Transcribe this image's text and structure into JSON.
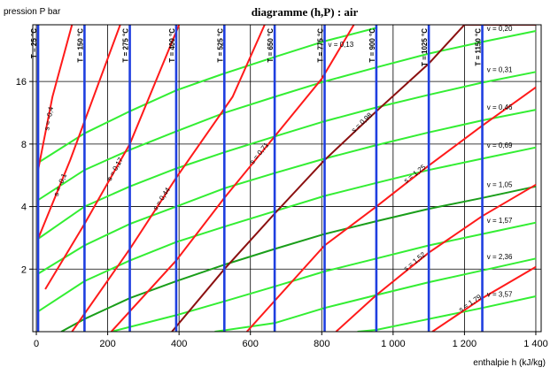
{
  "chart_data": {
    "type": "line",
    "title": "diagramme (h,P) : air",
    "ylabel": "pression  P bar",
    "xlabel": "enthalpie  h   (kJ/kg)",
    "xlim": [
      -10,
      1415
    ],
    "ylim": [
      1,
      30
    ],
    "y_scale": "log2",
    "grid": true,
    "x_ticks": [
      {
        "value": 0,
        "label": "0"
      },
      {
        "value": 200,
        "label": "200"
      },
      {
        "value": 400,
        "label": "400"
      },
      {
        "value": 600,
        "label": "600"
      },
      {
        "value": 800,
        "label": "800"
      },
      {
        "value": 1000,
        "label": "1 000"
      },
      {
        "value": 1200,
        "label": "1 200"
      },
      {
        "value": 1400,
        "label": "1 400"
      }
    ],
    "y_ticks": [
      {
        "value": 2,
        "label": "2"
      },
      {
        "value": 4,
        "label": "4"
      },
      {
        "value": 8,
        "label": "8"
      },
      {
        "value": 16,
        "label": "16"
      }
    ],
    "colors": {
      "isotherm": "#1f3fe0",
      "isentrope": "#ff1a1a",
      "isentrope_dark": "#8b1010",
      "isochore": "#33ee33",
      "isochore_dark": "#1a9e1a",
      "grid": "#000000"
    },
    "isotherms": [
      {
        "label": "T = 25 °C",
        "h": 5
      },
      {
        "label": "T = 150 °C",
        "h": 135
      },
      {
        "label": "T = 275 °C",
        "h": 262
      },
      {
        "label": "T = 400 °C",
        "h": 392
      },
      {
        "label": "T = 525 °C",
        "h": 527
      },
      {
        "label": "T = 650 °C",
        "h": 668
      },
      {
        "label": "T = 775 °C",
        "h": 808
      },
      {
        "label": "T = 900 °C",
        "h": 953
      },
      {
        "label": "T = 1025 °C",
        "h": 1100
      },
      {
        "label": "T = 1150 °C",
        "h": 1250
      }
    ],
    "isentropes": [
      {
        "label": "s = -0,4",
        "points": [
          [
            5,
            6.0
          ],
          [
            45,
            13.5
          ],
          [
            100,
            30
          ]
        ]
      },
      {
        "label": "s = -0,1",
        "points": [
          [
            5,
            2.8
          ],
          [
            95,
            6.7
          ],
          [
            235,
            30
          ]
        ]
      },
      {
        "label": "s = 0,17",
        "points": [
          [
            25,
            1.6
          ],
          [
            135,
            3.3
          ],
          [
            262,
            8
          ],
          [
            400,
            30
          ]
        ]
      },
      {
        "label": "s = 0,44",
        "points": [
          [
            100,
            1.0
          ],
          [
            262,
            2.5
          ],
          [
            392,
            5.5
          ],
          [
            550,
            13.5
          ],
          [
            640,
            30
          ]
        ]
      },
      {
        "label": "s = 0,71",
        "points": [
          [
            210,
            1.0
          ],
          [
            392,
            2.2
          ],
          [
            527,
            4.4
          ],
          [
            668,
            8.7
          ],
          [
            800,
            16.5
          ],
          [
            890,
            30
          ]
        ]
      },
      {
        "label": "s = 0,98",
        "points": [
          [
            380,
            1.0
          ],
          [
            527,
            2.0
          ],
          [
            668,
            3.7
          ],
          [
            808,
            6.7
          ],
          [
            953,
            11.5
          ],
          [
            1100,
            19.5
          ],
          [
            1200,
            30
          ],
          [
            1400,
            30
          ]
        ],
        "dark": true
      },
      {
        "label": "s = 1,25",
        "points": [
          [
            590,
            1.0
          ],
          [
            808,
            2.6
          ],
          [
            953,
            4.0
          ],
          [
            1100,
            6.3
          ],
          [
            1250,
            9.8
          ],
          [
            1400,
            15
          ]
        ]
      },
      {
        "label": "s = 1,52",
        "points": [
          [
            840,
            1.0
          ],
          [
            953,
            1.5
          ],
          [
            1100,
            2.4
          ],
          [
            1250,
            3.6
          ],
          [
            1400,
            5.1
          ]
        ]
      },
      {
        "label": "s = 1,79",
        "points": [
          [
            1110,
            1.0
          ],
          [
            1250,
            1.45
          ],
          [
            1400,
            2.05
          ]
        ]
      }
    ],
    "isochores": [
      {
        "label": "v = 0,13",
        "points": [
          [
            5,
            6.5
          ],
          [
            135,
            9.0
          ],
          [
            262,
            11.5
          ],
          [
            392,
            14.5
          ],
          [
            527,
            17.5
          ],
          [
            668,
            21.0
          ],
          [
            808,
            25.0
          ],
          [
            953,
            29.0
          ]
        ]
      },
      {
        "label": "v = 0,20",
        "points": [
          [
            5,
            4.3
          ],
          [
            135,
            6.0
          ],
          [
            262,
            7.5
          ],
          [
            392,
            9.2
          ],
          [
            527,
            11.3
          ],
          [
            668,
            13.5
          ],
          [
            808,
            16.0
          ],
          [
            953,
            18.7
          ],
          [
            1100,
            21.8
          ],
          [
            1250,
            24.8
          ],
          [
            1400,
            28.0
          ]
        ]
      },
      {
        "label": "v = 0,31",
        "points": [
          [
            5,
            2.8
          ],
          [
            135,
            4.0
          ],
          [
            262,
            5.0
          ],
          [
            392,
            6.1
          ],
          [
            527,
            7.3
          ],
          [
            668,
            8.7
          ],
          [
            808,
            10.3
          ],
          [
            953,
            12.0
          ],
          [
            1100,
            13.8
          ],
          [
            1250,
            15.8
          ],
          [
            1400,
            17.8
          ]
        ]
      },
      {
        "label": "v = 0,46",
        "points": [
          [
            5,
            1.9
          ],
          [
            135,
            2.6
          ],
          [
            262,
            3.3
          ],
          [
            392,
            4.0
          ],
          [
            527,
            4.9
          ],
          [
            668,
            5.8
          ],
          [
            808,
            6.8
          ],
          [
            953,
            7.9
          ],
          [
            1100,
            9.1
          ],
          [
            1250,
            10.4
          ],
          [
            1400,
            11.7
          ]
        ]
      },
      {
        "label": "v = 0,69",
        "points": [
          [
            5,
            1.25
          ],
          [
            135,
            1.75
          ],
          [
            262,
            2.2
          ],
          [
            392,
            2.7
          ],
          [
            527,
            3.2
          ],
          [
            668,
            3.8
          ],
          [
            808,
            4.5
          ],
          [
            953,
            5.2
          ],
          [
            1100,
            6.0
          ],
          [
            1250,
            6.8
          ],
          [
            1400,
            7.7
          ]
        ]
      },
      {
        "label": "v = 1,05",
        "points": [
          [
            70,
            1.0
          ],
          [
            135,
            1.15
          ],
          [
            262,
            1.45
          ],
          [
            392,
            1.75
          ],
          [
            527,
            2.1
          ],
          [
            668,
            2.5
          ],
          [
            808,
            2.95
          ],
          [
            953,
            3.4
          ],
          [
            1100,
            3.9
          ],
          [
            1250,
            4.4
          ],
          [
            1400,
            5.0
          ]
        ],
        "dark": true
      },
      {
        "label": "v = 1,57",
        "points": [
          [
            210,
            1.0
          ],
          [
            392,
            1.2
          ],
          [
            527,
            1.4
          ],
          [
            668,
            1.65
          ],
          [
            808,
            1.95
          ],
          [
            953,
            2.25
          ],
          [
            1100,
            2.6
          ],
          [
            1250,
            2.95
          ],
          [
            1400,
            3.35
          ]
        ]
      },
      {
        "label": "v = 2,36",
        "points": [
          [
            500,
            1.0
          ],
          [
            668,
            1.1
          ],
          [
            808,
            1.3
          ],
          [
            953,
            1.5
          ],
          [
            1100,
            1.73
          ],
          [
            1250,
            1.97
          ],
          [
            1400,
            2.25
          ]
        ]
      },
      {
        "label": "v = 3,57",
        "points": [
          [
            900,
            1.0
          ],
          [
            953,
            1.02
          ],
          [
            1100,
            1.15
          ],
          [
            1250,
            1.3
          ],
          [
            1400,
            1.48
          ]
        ]
      }
    ]
  }
}
